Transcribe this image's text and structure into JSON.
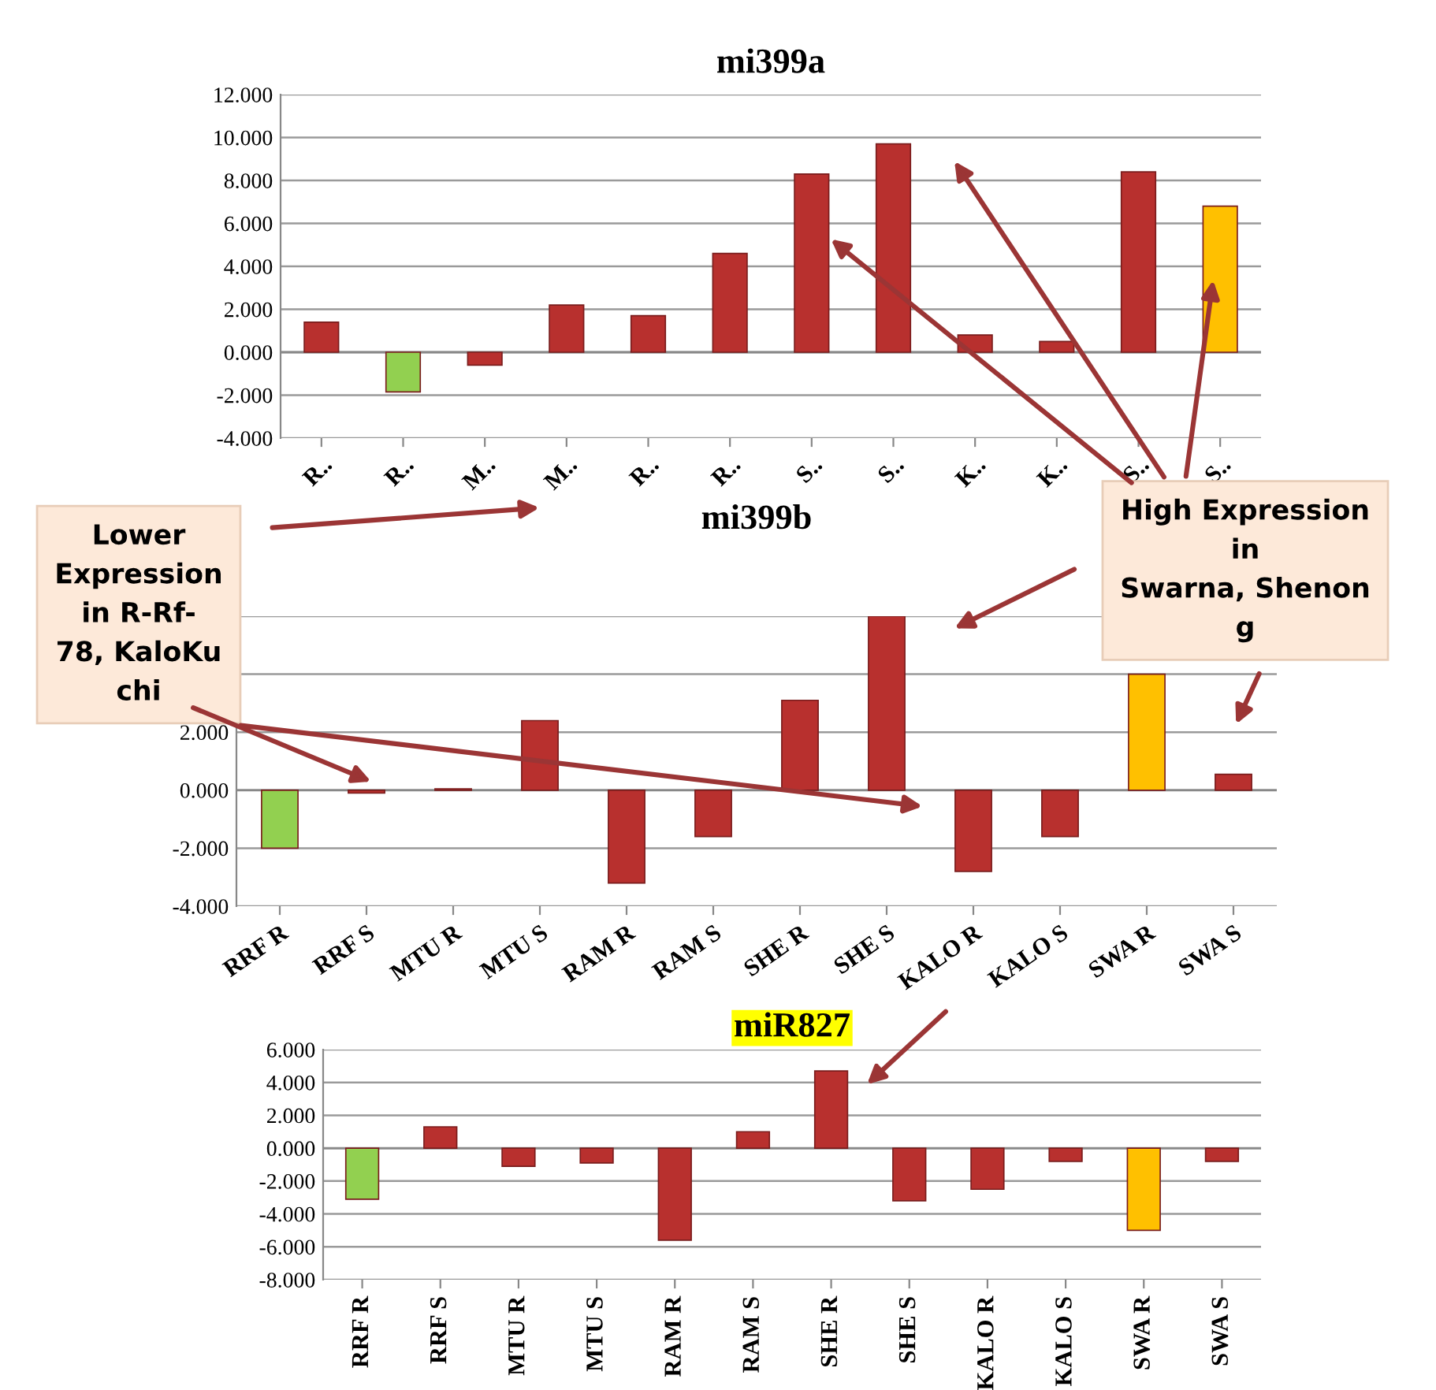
{
  "chart_data": [
    {
      "type": "bar",
      "title": "mi399a",
      "categories": [
        "R..",
        "R..",
        "M..",
        "M..",
        "R..",
        "R..",
        "S..",
        "S..",
        "K..",
        "K..",
        "S..",
        "S.."
      ],
      "values": [
        1.4,
        -1.85,
        -0.6,
        2.2,
        1.7,
        4.6,
        8.3,
        9.7,
        0.8,
        0.5,
        8.4,
        6.8
      ],
      "colors": [
        "#b8302e",
        "#92d050",
        "#b8302e",
        "#b8302e",
        "#b8302e",
        "#b8302e",
        "#b8302e",
        "#b8302e",
        "#b8302e",
        "#b8302e",
        "#b8302e",
        "#ffc000"
      ],
      "ylim": [
        -4,
        12
      ],
      "yticks": [
        {
          "value": -4,
          "label": "-4.000"
        },
        {
          "value": -2,
          "label": "-2.000"
        },
        {
          "value": 0,
          "label": "0.000"
        },
        {
          "value": 2,
          "label": "2.000"
        },
        {
          "value": 4,
          "label": "4.000"
        },
        {
          "value": 6,
          "label": "6.000"
        },
        {
          "value": 8,
          "label": "8.000"
        },
        {
          "value": 10,
          "label": "10.000"
        },
        {
          "value": 12,
          "label": "12.000"
        }
      ],
      "grid": "y",
      "legend": false
    },
    {
      "type": "bar",
      "title": "mi399b",
      "categories": [
        "RRF R",
        "RRF S",
        "MTU R",
        "MTU S",
        "RAM R",
        "RAM S",
        "SHE R",
        "SHE S",
        "KALO R",
        "KALO S",
        "SWA R",
        "SWA S"
      ],
      "values": [
        -2.0,
        -0.1,
        0.05,
        2.4,
        -3.2,
        -1.6,
        3.1,
        6.0,
        -2.8,
        -1.6,
        4.0,
        0.55
      ],
      "colors": [
        "#92d050",
        "#b8302e",
        "#b8302e",
        "#b8302e",
        "#b8302e",
        "#b8302e",
        "#b8302e",
        "#b8302e",
        "#b8302e",
        "#b8302e",
        "#ffc000",
        "#b8302e"
      ],
      "ylim": [
        -4,
        6
      ],
      "yticks": [
        {
          "value": -4,
          "label": "-4.000"
        },
        {
          "value": -2,
          "label": "-2.000"
        },
        {
          "value": 0,
          "label": "0.000"
        },
        {
          "value": 2,
          "label": "2.000"
        },
        {
          "value": 4,
          "label": null
        },
        {
          "value": 6,
          "label": null
        }
      ],
      "grid": "y",
      "legend": false,
      "annotations": [
        "Lower\nExpression\nin R-Rf-\n78, KaloKu\nchi",
        "High Expression\nin\nSwarna, Shenon\ng"
      ]
    },
    {
      "type": "bar",
      "title": "miR827",
      "categories": [
        "RRF R",
        "RRF S",
        "MTU R",
        "MTU S",
        "RAM R",
        "RAM S",
        "SHE R",
        "SHE S",
        "KALO R",
        "KALO S",
        "SWA R",
        "SWA S"
      ],
      "values": [
        -3.1,
        1.3,
        -1.1,
        -0.9,
        -5.6,
        1.0,
        4.7,
        -3.2,
        -2.5,
        -0.8,
        -5.0,
        -0.8
      ],
      "colors": [
        "#92d050",
        "#b8302e",
        "#b8302e",
        "#b8302e",
        "#b8302e",
        "#b8302e",
        "#b8302e",
        "#b8302e",
        "#b8302e",
        "#b8302e",
        "#ffc000",
        "#b8302e"
      ],
      "ylim": [
        -8,
        6
      ],
      "yticks": [
        {
          "value": -8,
          "label": "-8.000"
        },
        {
          "value": -6,
          "label": "-6.000"
        },
        {
          "value": -4,
          "label": "-4.000"
        },
        {
          "value": -2,
          "label": "-2.000"
        },
        {
          "value": 0,
          "label": "0.000"
        },
        {
          "value": 2,
          "label": "2.000"
        },
        {
          "value": 4,
          "label": "4.000"
        },
        {
          "value": 6,
          "label": "6.000"
        }
      ],
      "grid": "y",
      "legend": false
    }
  ]
}
